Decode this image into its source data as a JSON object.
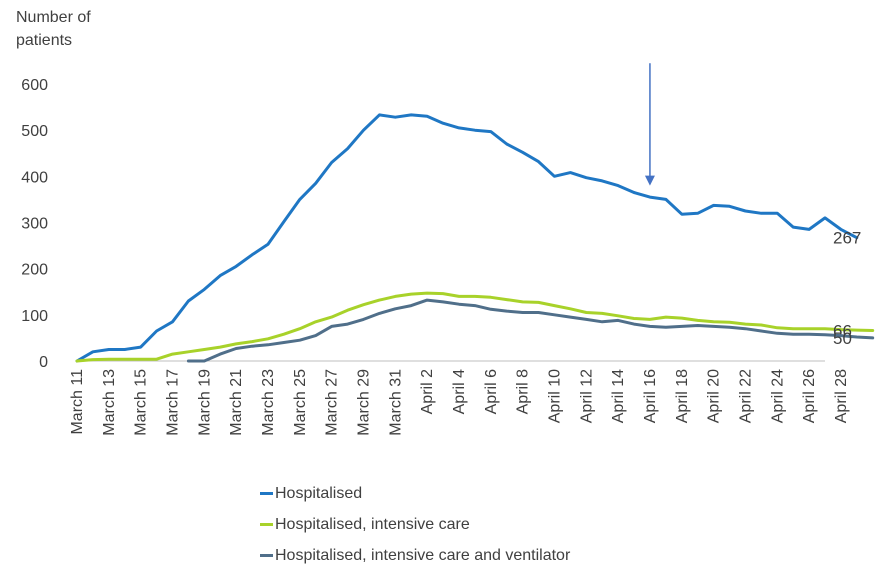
{
  "chart_data": {
    "type": "line",
    "ylabel": "Number of patients",
    "ylabel_lines": [
      "Number of",
      "patients"
    ],
    "ylim": [
      0,
      600
    ],
    "yticks": [
      0,
      100,
      200,
      300,
      400,
      500,
      600
    ],
    "x_start": 11,
    "x_end": 58,
    "xticks": [
      {
        "x": 11,
        "label": "March 11"
      },
      {
        "x": 13,
        "label": "March 13"
      },
      {
        "x": 15,
        "label": "March 15"
      },
      {
        "x": 17,
        "label": "March 17"
      },
      {
        "x": 19,
        "label": "March 19"
      },
      {
        "x": 21,
        "label": "March 21"
      },
      {
        "x": 23,
        "label": "March 23"
      },
      {
        "x": 25,
        "label": "March 25"
      },
      {
        "x": 27,
        "label": "March 27"
      },
      {
        "x": 29,
        "label": "March 29"
      },
      {
        "x": 31,
        "label": "March 31"
      },
      {
        "x": 33,
        "label": "April 2"
      },
      {
        "x": 35,
        "label": "April 4"
      },
      {
        "x": 37,
        "label": "April 6"
      },
      {
        "x": 39,
        "label": "April 8"
      },
      {
        "x": 41,
        "label": "April 10"
      },
      {
        "x": 43,
        "label": "April 12"
      },
      {
        "x": 45,
        "label": "April 14"
      },
      {
        "x": 47,
        "label": "April 16"
      },
      {
        "x": 49,
        "label": "April 18"
      },
      {
        "x": 51,
        "label": "April 20"
      },
      {
        "x": 53,
        "label": "April 22"
      },
      {
        "x": 55,
        "label": "April 24"
      },
      {
        "x": 57,
        "label": "April 26"
      },
      {
        "x": 59,
        "label": "April 28"
      }
    ],
    "annotation": {
      "type": "arrow",
      "x": 47,
      "y_from": 645,
      "y_to": 380
    },
    "series": [
      {
        "name": "Hospitalised",
        "color": "#1f77c4",
        "x_start": 11,
        "values": [
          0,
          20,
          25,
          25,
          30,
          65,
          85,
          130,
          155,
          185,
          205,
          230,
          253,
          302,
          350,
          385,
          430,
          460,
          500,
          533,
          528,
          533,
          530,
          515,
          505,
          500,
          497,
          470,
          452,
          432,
          400,
          408,
          397,
          390,
          380,
          365,
          355,
          350,
          318,
          320,
          337,
          335,
          325,
          320,
          320,
          290,
          285,
          310,
          285,
          267
        ],
        "end_label": "267"
      },
      {
        "name": "Hospitalised, intensive care",
        "color": "#a8d22a",
        "x_start": 11,
        "values": [
          0,
          3,
          4,
          4,
          4,
          4,
          15,
          20,
          25,
          30,
          37,
          42,
          48,
          58,
          70,
          85,
          95,
          110,
          122,
          132,
          140,
          145,
          147,
          146,
          140,
          140,
          138,
          133,
          128,
          127,
          120,
          113,
          105,
          103,
          98,
          92,
          90,
          95,
          93,
          88,
          85,
          84,
          80,
          78,
          72,
          70,
          70,
          70,
          68,
          67,
          66
        ],
        "end_label": "66"
      },
      {
        "name": "Hospitalised, intensive care and ventilator",
        "color": "#506f8a",
        "x_start": 18,
        "values": [
          0,
          0,
          15,
          27,
          32,
          35,
          40,
          45,
          55,
          75,
          80,
          90,
          103,
          113,
          120,
          132,
          128,
          123,
          120,
          112,
          108,
          105,
          105,
          100,
          95,
          90,
          85,
          88,
          80,
          75,
          73,
          75,
          77,
          75,
          73,
          70,
          65,
          60,
          58,
          58,
          57,
          55,
          52,
          50
        ],
        "end_label": "50"
      }
    ]
  }
}
